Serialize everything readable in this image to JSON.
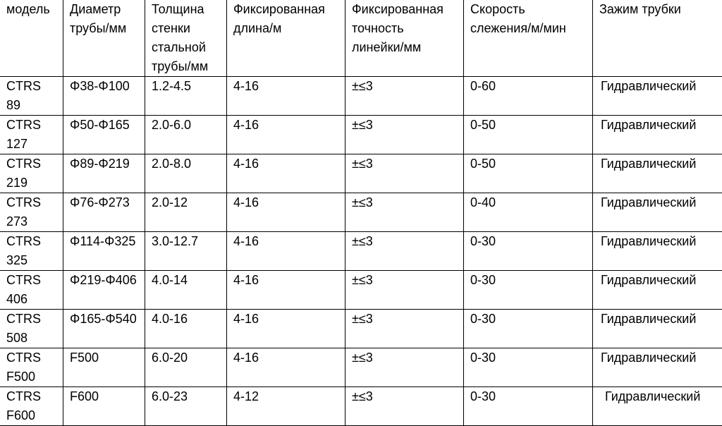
{
  "table": {
    "headers": [
      "модель",
      "Диаметр трубы/мм",
      "Толщина стенки стальной трубы/мм",
      "Фиксированная длина/м",
      "Фиксированная точность линейки/мм",
      "Скорость слежения/м/мин",
      "Зажим трубки"
    ],
    "rows": [
      [
        "CTRS 89",
        "Φ38-Φ100",
        "1.2-4.5",
        "4-16",
        "±≤3",
        "0-60",
        "Гидравлический"
      ],
      [
        "CTRS 127",
        "Φ50-Φ165",
        "2.0-6.0",
        "4-16",
        "±≤3",
        "0-50",
        "Гидравлический"
      ],
      [
        "CTRS 219",
        "Φ89-Φ219",
        "2.0-8.0",
        "4-16",
        "±≤3",
        "0-50",
        "Гидравлический"
      ],
      [
        "CTRS 273",
        "Φ76-Φ273",
        "2.0-12",
        "4-16",
        "±≤3",
        "0-40",
        "Гидравлический"
      ],
      [
        "CTRS 325",
        "Φ114-Φ325",
        "3.0-12.7",
        "4-16",
        "±≤3",
        "0-30",
        "Гидравлический"
      ],
      [
        "CTRS 406",
        "Φ219-Φ406",
        "4.0-14",
        "4-16",
        "±≤3",
        "0-30",
        "Гидравлический"
      ],
      [
        "CTRS 508",
        "Φ165-Φ540",
        "4.0-16",
        "4-16",
        "±≤3",
        "0-30",
        "Гидравлический"
      ],
      [
        "CTRS F500",
        "F500",
        "6.0-20",
        "4-16",
        "±≤3",
        "0-30",
        "Гидравлический"
      ],
      [
        "CTRS F600",
        "F600",
        "6.0-23",
        "4-12",
        "±≤3",
        "0-30",
        "Гидравлический"
      ]
    ]
  }
}
